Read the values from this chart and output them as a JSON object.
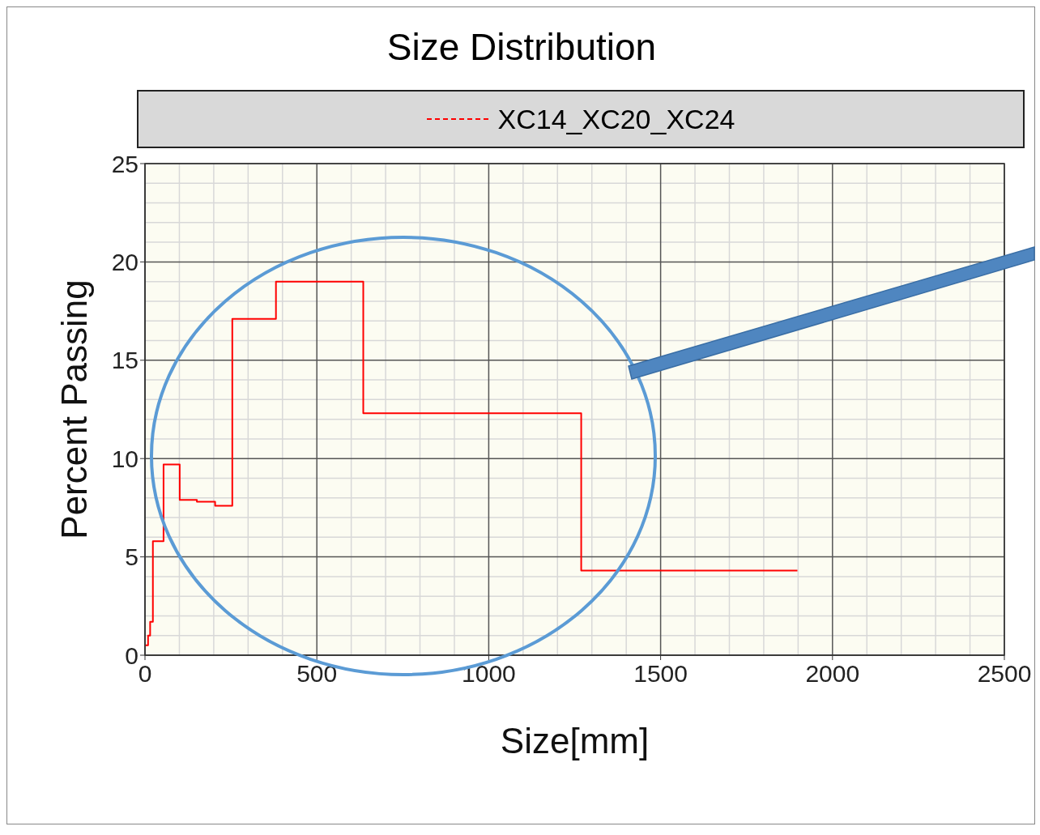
{
  "chart_data": {
    "type": "step",
    "title": "Size Distribution",
    "xlabel": "Size[mm]",
    "ylabel": "Percent Passing",
    "x": [
      2,
      9,
      15,
      23,
      54,
      101,
      151,
      204,
      254,
      381,
      635,
      1269,
      1898
    ],
    "series": [
      {
        "name": "XC14_XC20_XC24",
        "color": "#ff0000",
        "values": [
          0.5,
          1.0,
          1.7,
          5.8,
          9.7,
          7.9,
          7.8,
          7.6,
          17.1,
          19.0,
          12.3,
          4.3,
          4.3
        ]
      }
    ],
    "xlim": [
      0,
      2500
    ],
    "xticks": [
      0,
      500,
      1000,
      1500,
      2000,
      2500
    ],
    "ylim": [
      0,
      25
    ],
    "yticks": [
      0,
      5,
      10,
      15,
      20,
      25
    ],
    "grid": true,
    "legend": "top",
    "marker": "none",
    "line_style": "solid"
  }
}
